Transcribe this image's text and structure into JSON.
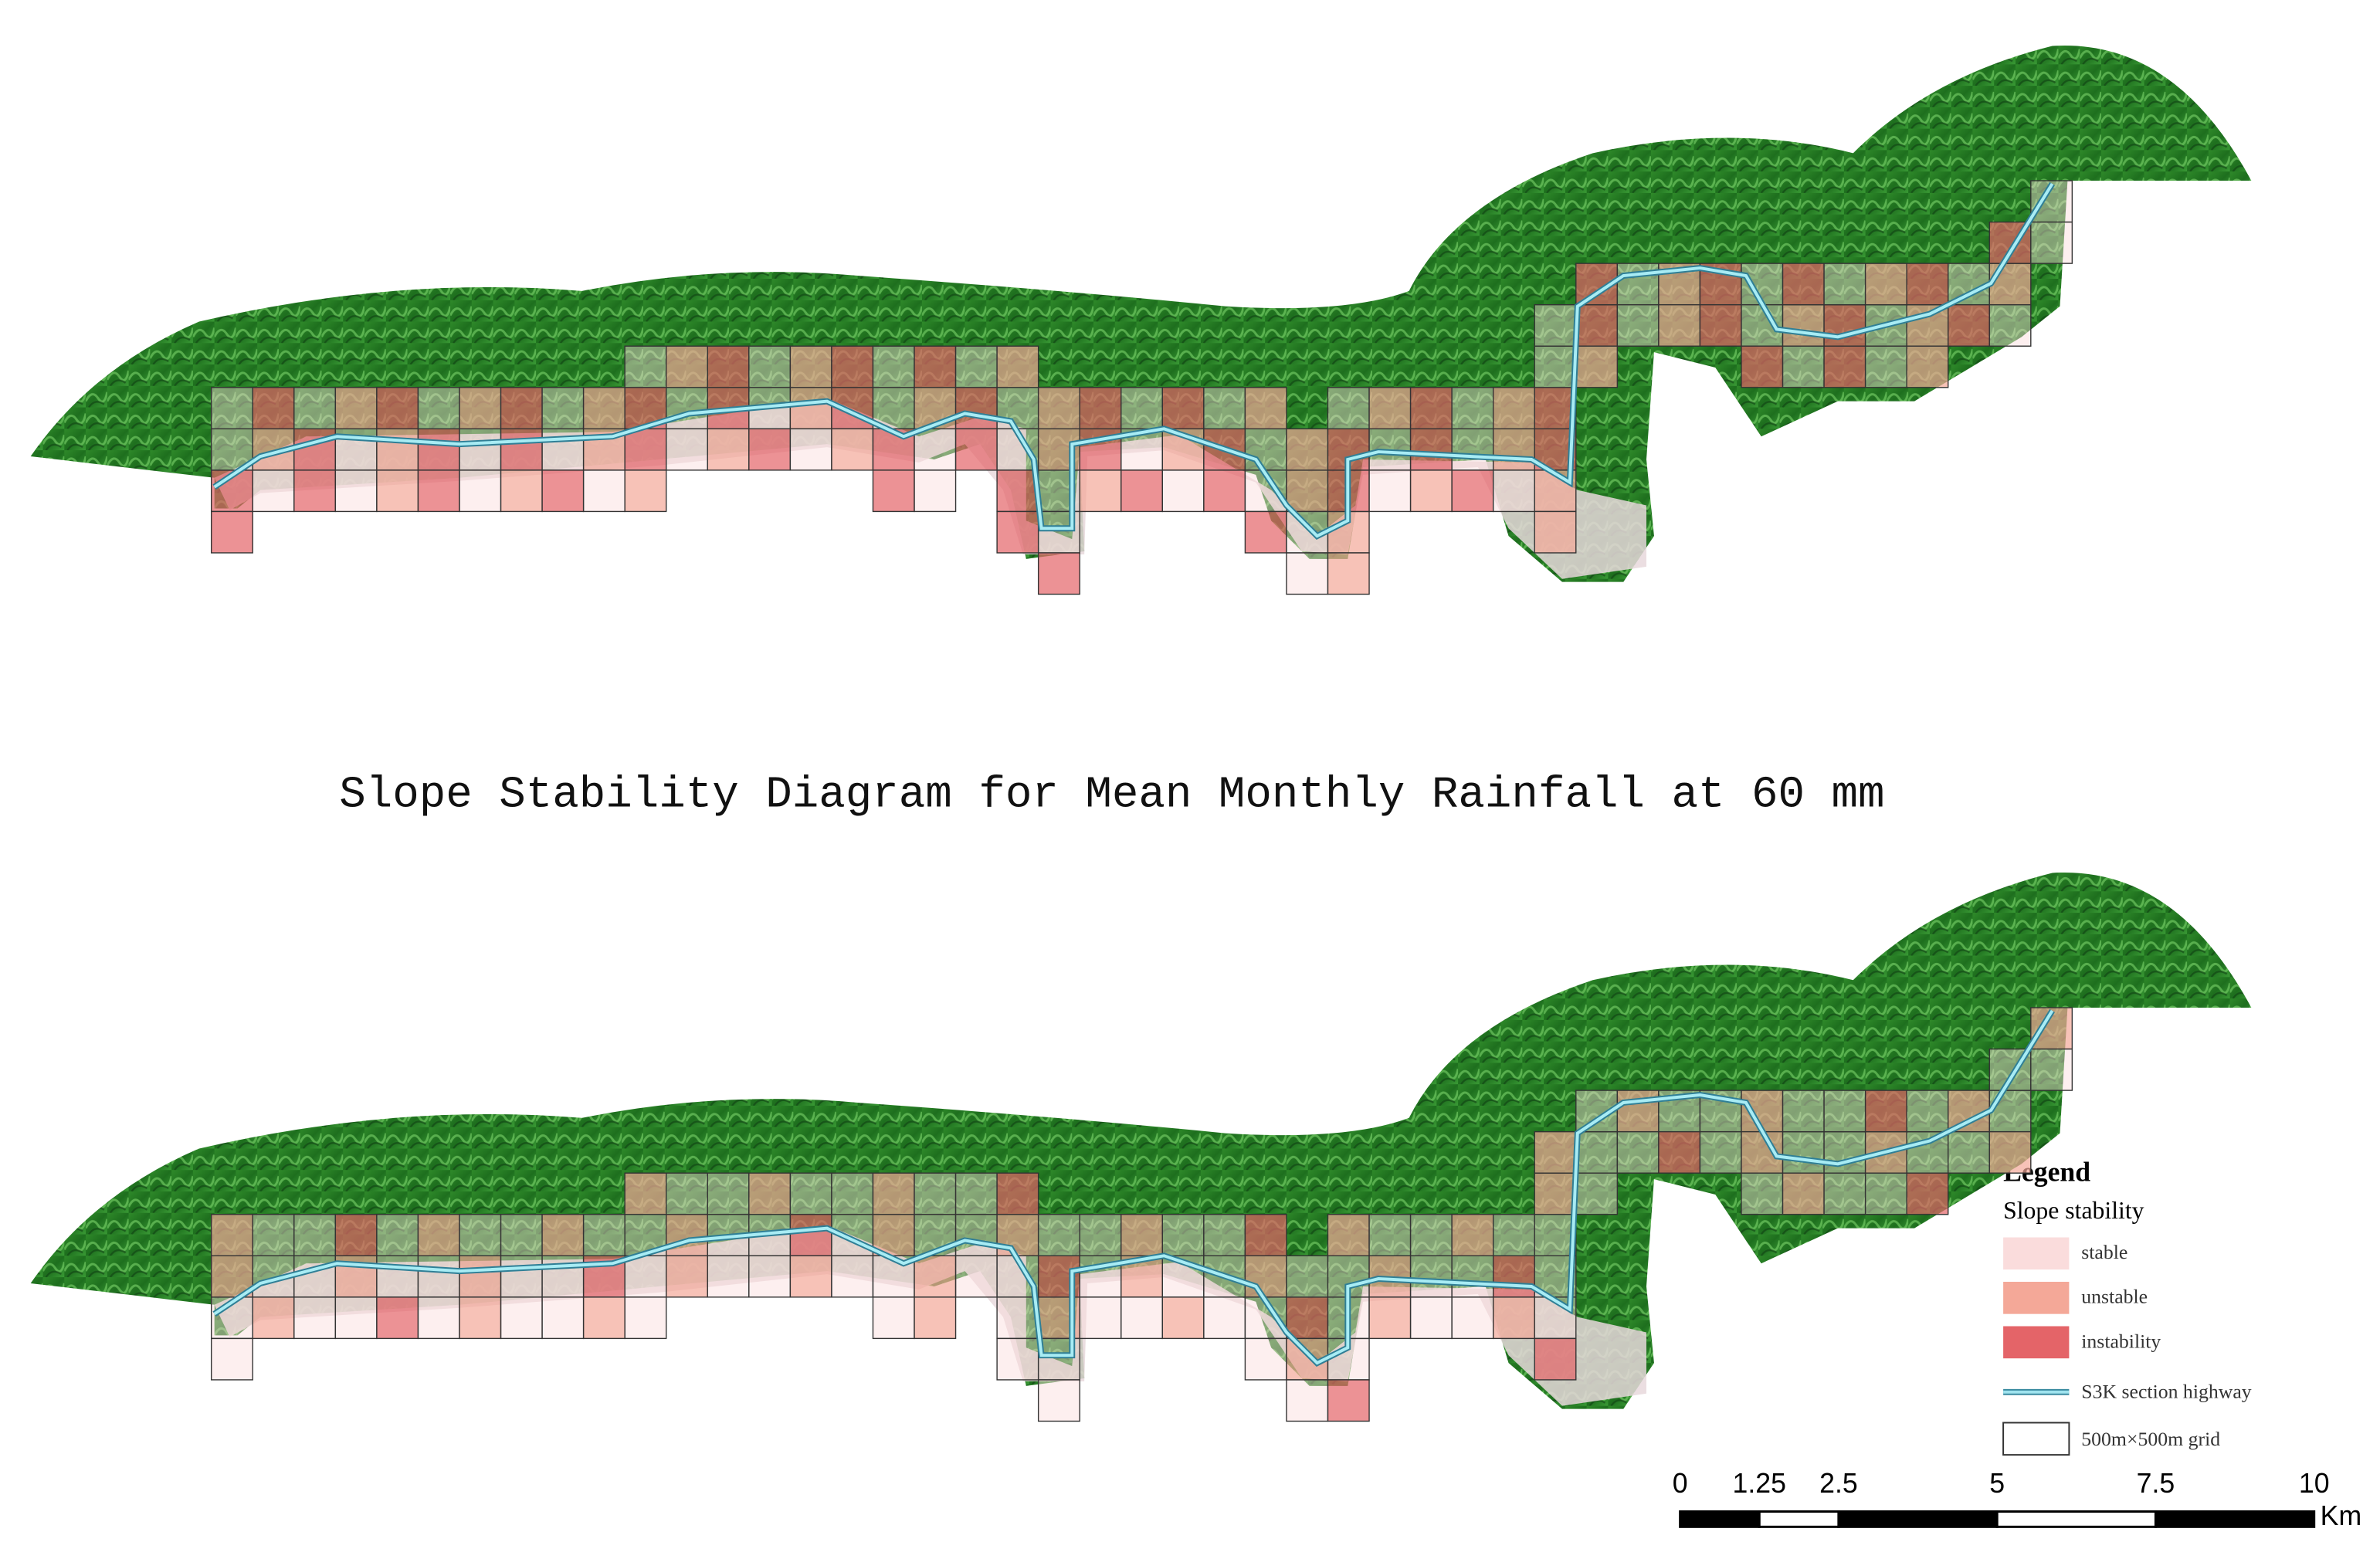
{
  "title": "Slope Stability Diagram for Mean Monthly Rainfall at 60 mm",
  "legend": {
    "title": "Legend",
    "subtitle": "Slope stability",
    "items": [
      {
        "label": "stable",
        "color": "#fadcdc"
      },
      {
        "label": "unstable",
        "color": "#f4a898"
      },
      {
        "label": "instability",
        "color": "#e46468"
      }
    ],
    "highway": "S3K section highway",
    "grid": "500m×500m grid"
  },
  "scale_bar": {
    "ticks": [
      0,
      1.25,
      2.5,
      5,
      7.5,
      10
    ],
    "unit": "Km"
  }
}
